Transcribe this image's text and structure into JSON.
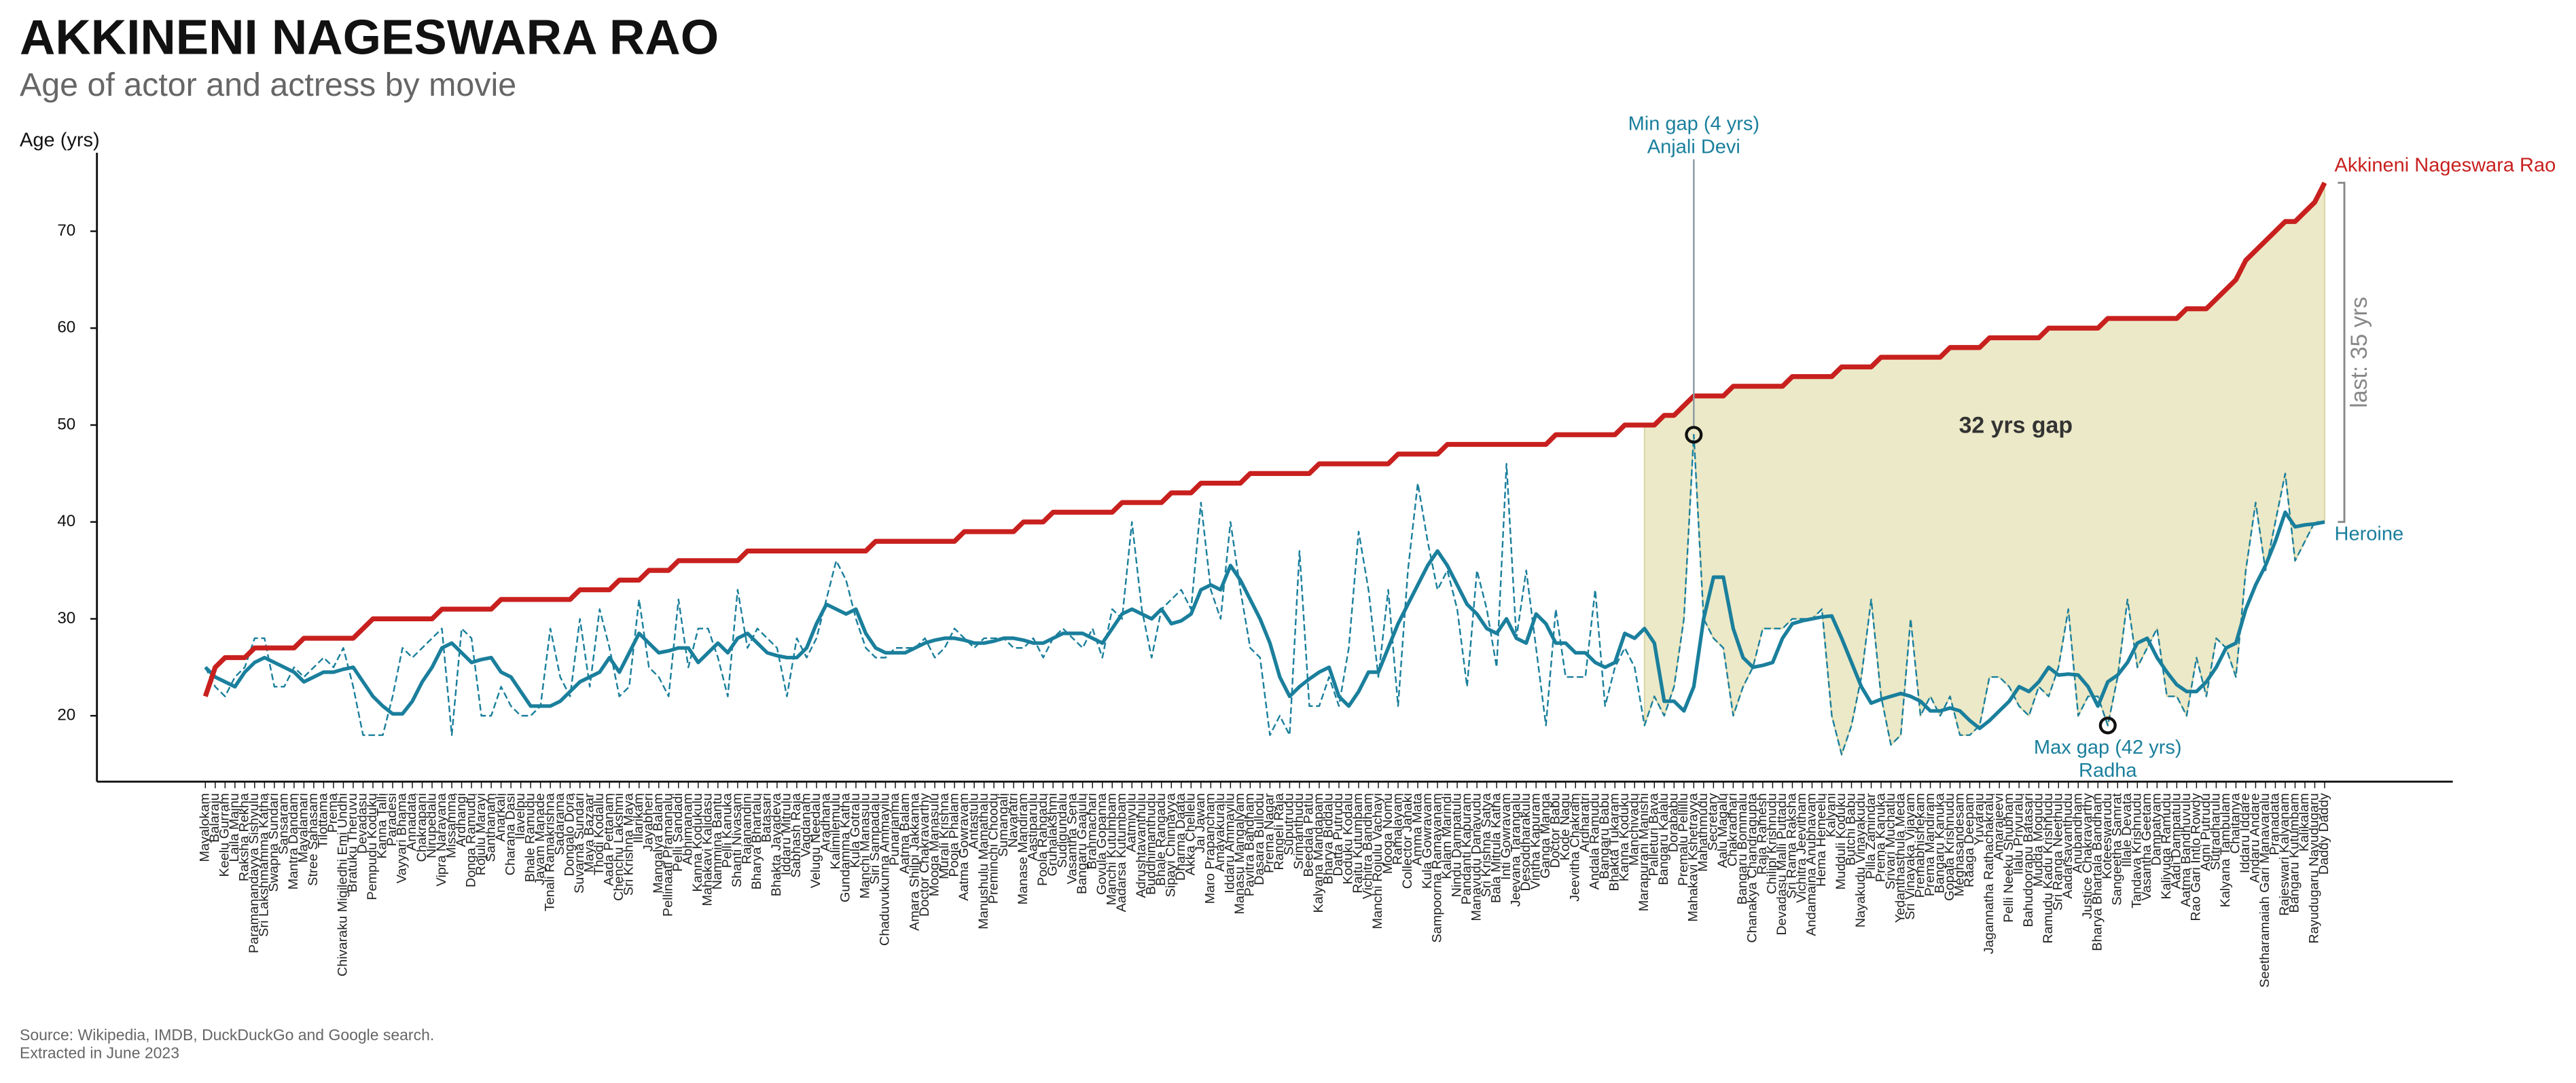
{
  "chart_data": {
    "type": "line",
    "title": "AKKINENI NAGESWARA RAO",
    "subtitle": "Age of actor and actress by movie",
    "y_label": "Age (yrs)",
    "source": [
      "Source: Wikipedia, IMDB, DuckDuckGo and Google search.",
      "Extracted in June 2023"
    ],
    "categories": [
      "Mayalokam",
      "Balaraju",
      "Keelu Gurram",
      "Laila Majnu",
      "Raksha Rekha",
      "Paramanandayya Sishyulu",
      "Sri Lakshmamma Katha",
      "Swapna Sundari",
      "Sansaram",
      "Mantra Dandam",
      "Mayalamari",
      "Stree Sahasam",
      "Tilottama",
      "Prema",
      "Chivaraku Migiledhi Emi Undhi",
      "Bratuku Theruvu",
      "Devadasu",
      "Pempudu Koduku",
      "Kanna Talli",
      "Paradesi",
      "Vayyari Bhama",
      "Annadata",
      "Chakrapani",
      "Nirupedalu",
      "Vipra Narayana",
      "Missamma",
      "Ardhangi",
      "Donga Ramudu",
      "Rojulu Marayi",
      "Santhanam",
      "Anarkali",
      "Charana Dasi",
      "Ilavelpu",
      "Bhale Ramudu",
      "Jayam Manade",
      "Tenali Ramakrishna",
      "Sadarama",
      "Dongalo Dora",
      "Suvarna Sundari",
      "Maya Bazaar",
      "Thodi Kodallu",
      "Aada Pettanam",
      "Chenchu Lakshmi",
      "Sri Krishna Maya",
      "Illarikam",
      "Jayabheri",
      "Mangalya Balam",
      "Pellinaati Pramanalu",
      "Pelli Sandadi",
      "Abhimanam",
      "Kanna Kodukulu",
      "Mahakavi Kalidasu",
      "Nammina Bantu",
      "Pelli Kanuka",
      "Shanti Nivasam",
      "Rajanandini",
      "Bharya Bhartalu",
      "Batasari",
      "Bhakta Jayadeva",
      "Iddaru Mitrulu",
      "Sabhash Raja",
      "Vagdanam",
      "Velugu Needalu",
      "Aradhana",
      "Kalimilemulu",
      "Gundamma Katha",
      "Kula Gotralu",
      "Manchi Manasulu",
      "Siri Sampadalu",
      "Chaduvukunna Ammayilu",
      "Punarjanma",
      "Aatma Balam",
      "Amara Shilpi Jakkanna",
      "Doctor Chakravarthy",
      "Mooga Manasulu",
      "Murali Krishna",
      "Pooja Phalam",
      "Aatma Gowravam",
      "Antastulu",
      "Manushulu Mamathalu",
      "Preminchi Choodu",
      "Sumangali",
      "Navaratri",
      "Manase Mandiram",
      "Aastiparulu",
      "Poola Rangadu",
      "Gruhalakshmi",
      "Sudigundalu",
      "Vasantha Sena",
      "Bangaru Gaajulu",
      "Brahmachari",
      "Govula Gopanna",
      "Manchi Kutumbam",
      "Aadarsa Kutumbam",
      "Aatmiyulu",
      "Adrushtavanthulu",
      "Buddhimanthudu",
      "Bhale Rangadu",
      "Sipayi Chinnayya",
      "Dharma Daata",
      "Akka Chellelu",
      "Jai Jawan",
      "Maro Prapancham",
      "Amayakuralu",
      "Iddaru Ammayilu",
      "Manasu Mangalyam",
      "Pavitra Bandham",
      "Dasara Bullodu",
      "Prema Nagar",
      "Rangeli Raja",
      "Suputrudu",
      "Srimanthudu",
      "Beedala Patlu",
      "Kalyana Mandapam",
      "Bharya Biddalu",
      "Datta Putrudu",
      "Koduku Kodalu",
      "Raitu Kutumbam",
      "Vichitra Bandham",
      "Manchi Rojulu Vachayi",
      "Mooga Nomu",
      "Ramalayam",
      "Collector Janaki",
      "Amma Mata",
      "Kula Gowravam",
      "Sampoorna Ramayanam",
      "Kalam Marindi",
      "Nindu Dampatulu",
      "Pandanti Kapuram",
      "Manavudu Danavudu",
      "Sri Krishna Satya",
      "Bala Mitrula Katha",
      "Inti Gowravam",
      "Jeevana Tarangalu",
      "Desoddharakulu",
      "Vintha Kapuram",
      "Ganga Manga",
      "Doctor Babu",
      "Kode Nagu",
      "Jeevitha Chakram",
      "Ardharatri",
      "Andala Ramudu",
      "Bangaru Babu",
      "Bhakta Tukaram",
      "Kanna Koduku",
      "Manchivadu",
      "Marapurani Manishi",
      "Palleturi Bava",
      "Bangaru Kalalu",
      "Dorababu",
      "Premalu Pellillu",
      "Mahakavi Kshetrayya",
      "Mahathmudu",
      "Secretary",
      "Aalu Magalu",
      "Chakradhari",
      "Bangaru Bommalu",
      "Chanakya Chandragupta",
      "Raja Ramesh",
      "Chilipi Krishnudu",
      "Devadasu Malli Puttadu",
      "Sri Rama Raksha",
      "Vichitra Jeevitham",
      "Andamaina Anubhavam",
      "Hema Hemeelu",
      "Kalyani",
      "Mudduli Koduku",
      "Butchi Babu",
      "Nayakudu Vinayakudu",
      "Pilla Zamindar",
      "Prema Kanuka",
      "Srivari Muchatlu",
      "Yedanthasthula Meda",
      "Sri Vinayaka Vijayam",
      "Premabhishekam",
      "Prema Mandiram",
      "Bangaru Kanuka",
      "Gopala Krishnudu",
      "Meghasandesam",
      "Raaga Deepam",
      "Yuvaraju",
      "Jagannatha Rathachakralu",
      "Amarajeevi",
      "Pelli Neeku Shubham",
      "Ilalu Priyuralu",
      "Bahudoorapu Batasari",
      "Mudda Mogudu",
      "Ramudu Kadu Krishnudu",
      "Sri Ranga Neethulu",
      "Aadarsavanthudu",
      "Anubandham",
      "Justice Chakravarthy",
      "Bharya Bhartala Bandham",
      "Koteeswarudu",
      "Sangeetha Samrat",
      "Illale Devata",
      "Tandava Krishnudu",
      "Vasantha Geetam",
      "Dampatyam",
      "Kaliyuga Ramudu",
      "Aadi Dampatulu",
      "Aatma Bandhuvulu",
      "Rao Gari Intlo Rowdy",
      "Agni Putrudu",
      "Sutradharulu",
      "Kalyana Tambulam",
      "Chaitanya",
      "Iddaru Iddare",
      "Andaru Andare",
      "Seetharamaiah Gari Manavaralu",
      "Pranadata",
      "Rajeswari Kalyanam",
      "Bangaru Kutumbam",
      "Kalikalam",
      "Rayudugaru Nayudugaru",
      "Daddy Daddy"
    ],
    "series": [
      {
        "name": "Akkineni Nageswara Rao",
        "color": "#c8201e",
        "width": 3,
        "values": [
          22,
          25,
          26,
          26,
          26,
          27,
          27,
          27,
          27,
          27,
          28,
          28,
          28,
          28,
          28,
          28,
          29,
          30,
          30,
          30,
          30,
          30,
          30,
          30,
          31,
          31,
          31,
          31,
          31,
          31,
          32,
          32,
          32,
          32,
          32,
          32,
          32,
          32,
          33,
          33,
          33,
          33,
          34,
          34,
          34,
          35,
          35,
          35,
          36,
          36,
          36,
          36,
          36,
          36,
          36,
          37,
          37,
          37,
          37,
          37,
          37,
          37,
          37,
          37,
          37,
          37,
          37,
          37,
          38,
          38,
          38,
          38,
          38,
          38,
          38,
          38,
          38,
          39,
          39,
          39,
          39,
          39,
          39,
          40,
          40,
          40,
          41,
          41,
          41,
          41,
          41,
          41,
          41,
          42,
          42,
          42,
          42,
          42,
          43,
          43,
          43,
          44,
          44,
          44,
          44,
          44,
          45,
          45,
          45,
          45,
          45,
          45,
          45,
          46,
          46,
          46,
          46,
          46,
          46,
          46,
          46,
          47,
          47,
          47,
          47,
          47,
          48,
          48,
          48,
          48,
          48,
          48,
          48,
          48,
          48,
          48,
          48,
          49,
          49,
          49,
          49,
          49,
          49,
          49,
          50,
          50,
          50,
          50,
          51,
          51,
          52,
          53,
          53,
          53,
          53,
          54,
          54,
          54,
          54,
          54,
          54,
          55,
          55,
          55,
          55,
          55,
          56,
          56,
          56,
          56,
          57,
          57,
          57,
          57,
          57,
          57,
          57,
          58,
          58,
          58,
          58,
          59,
          59,
          59,
          59,
          59,
          59,
          60,
          60,
          60,
          60,
          60,
          60,
          61,
          61,
          61,
          61,
          61,
          61,
          61,
          61,
          62,
          62,
          62,
          63,
          64,
          65,
          67,
          68,
          69,
          70,
          71,
          71,
          72,
          73,
          75
        ]
      },
      {
        "name": "Heroine",
        "color": "#1a7f9c",
        "width": 2.2,
        "values": [
          25,
          24,
          23.5,
          23,
          24.5,
          25.5,
          26,
          25.5,
          25,
          24.5,
          23.5,
          24,
          24.5,
          24.5,
          24.8,
          25,
          23.5,
          22,
          21,
          20.2,
          20.2,
          21.5,
          23.5,
          25,
          27,
          27.5,
          26.5,
          25.5,
          25.8,
          26,
          24.5,
          24,
          22.5,
          21,
          21,
          21,
          21.5,
          22.5,
          23.5,
          24,
          24.5,
          26,
          24.5,
          26.5,
          28.5,
          27.5,
          26.5,
          26.7,
          27,
          27,
          25.5,
          26.5,
          27.5,
          26.5,
          28,
          28.5,
          27.5,
          26.5,
          26.2,
          26,
          26,
          27,
          29.5,
          31.5,
          31,
          30.5,
          31,
          28.5,
          27,
          26.5,
          26.5,
          26.5,
          27,
          27.5,
          27.8,
          28,
          28,
          27.8,
          27.5,
          27.5,
          27.7,
          28,
          28,
          27.8,
          27.5,
          27.5,
          28,
          28.5,
          28.5,
          28.5,
          28,
          27.5,
          29,
          30.5,
          31,
          30.5,
          30,
          31,
          29.5,
          29.8,
          30.5,
          33,
          33.5,
          33,
          35.5,
          34,
          32,
          30,
          27.5,
          24,
          22,
          23,
          23.8,
          24.5,
          25,
          22,
          21,
          22.5,
          24.5,
          24.5,
          27,
          29.5,
          31.5,
          33.5,
          35.5,
          37,
          35.5,
          33.5,
          31.5,
          30.5,
          29,
          28.5,
          30,
          28,
          27.5,
          30.5,
          29.5,
          27.5,
          27.5,
          26.5,
          26.5,
          25.5,
          25,
          25.5,
          28.5,
          28,
          29,
          27.5,
          21.5,
          21.5,
          20.5,
          23,
          30,
          34.3,
          34.3,
          29,
          26,
          25,
          25.2,
          25.5,
          28,
          29.5,
          29.8,
          30,
          30.2,
          30.3,
          28,
          25.5,
          23,
          21.3,
          21.7,
          22,
          22.3,
          22,
          21.5,
          20.5,
          20.5,
          20.8,
          20.5,
          19.5,
          18.7,
          19.5,
          20.5,
          21.5,
          23,
          22.5,
          23.5,
          25,
          24.2,
          24.3,
          24.2,
          23,
          21,
          23.5,
          24.2,
          25.5,
          27.5,
          28,
          26,
          24.5,
          23.2,
          22.5,
          22.5,
          23.5,
          25,
          27,
          27.5,
          31,
          33.5,
          35.5,
          38,
          41,
          39.5,
          39.7,
          39.8,
          40
        ]
      },
      {
        "color": "#1a7f9c",
        "width": 1,
        "dashed": true,
        "values": [
          25,
          23,
          22,
          24,
          25,
          28,
          28,
          23,
          23,
          25,
          24,
          25,
          26,
          25,
          27,
          23,
          18,
          18,
          18,
          22,
          27,
          26,
          27,
          28,
          29,
          18,
          29,
          28,
          20,
          20,
          23,
          21,
          20,
          20,
          21,
          29,
          24,
          22,
          30,
          23,
          31,
          27,
          22,
          23,
          32,
          25,
          24,
          22,
          32,
          25,
          29,
          29,
          26,
          22,
          33,
          27,
          29,
          28,
          27,
          22,
          28,
          26,
          28,
          32,
          36,
          34,
          30,
          27,
          26,
          26,
          27,
          27,
          27,
          28,
          26,
          27,
          29,
          28,
          27,
          28,
          28,
          28,
          27,
          27,
          28,
          26,
          28,
          29,
          28,
          27,
          29,
          26,
          31,
          30,
          40,
          31,
          26,
          31,
          32,
          33,
          31,
          42,
          33,
          30,
          40,
          33,
          27,
          26,
          18,
          20,
          18,
          37,
          21,
          21,
          24,
          21,
          27,
          39,
          33,
          24,
          33,
          21,
          35,
          44,
          38,
          33,
          35,
          31,
          23,
          35,
          31,
          25,
          46,
          28,
          35,
          27,
          19,
          31,
          24,
          24,
          24,
          33,
          21,
          25,
          27,
          25,
          19,
          22,
          20,
          23,
          30,
          49,
          30,
          28,
          27,
          20,
          23,
          25,
          29,
          29,
          29,
          30,
          30,
          30,
          31,
          20,
          16,
          19,
          24,
          32,
          22,
          17,
          18,
          30,
          20,
          22,
          20,
          22,
          18,
          18,
          19,
          24,
          24,
          23,
          21,
          20,
          23,
          22,
          25,
          31,
          20,
          22,
          22,
          19,
          24,
          32,
          25,
          27,
          29,
          22,
          22,
          20,
          26,
          22,
          28,
          27,
          24,
          35,
          42,
          35,
          40,
          45,
          36,
          38,
          40,
          40
        ]
      }
    ],
    "ylim": [
      13.2,
      78.1
    ],
    "yticks": [
      20,
      30,
      40,
      50,
      60,
      70
    ],
    "gap_shade": {
      "from": "Marapurani Manishi",
      "color": "#ece9c8",
      "label": "32 yrs gap"
    },
    "last_gap_label": "last: 35 yrs",
    "annotations": [
      {
        "category": "Mahakavi Kshetrayya",
        "text": "Min gap (4 yrs)",
        "subtext": "Anjali Devi",
        "position": "above"
      },
      {
        "category": "Koteeswarudu",
        "text": "Max gap (42 yrs)",
        "subtext": "Radha",
        "position": "below"
      }
    ]
  }
}
